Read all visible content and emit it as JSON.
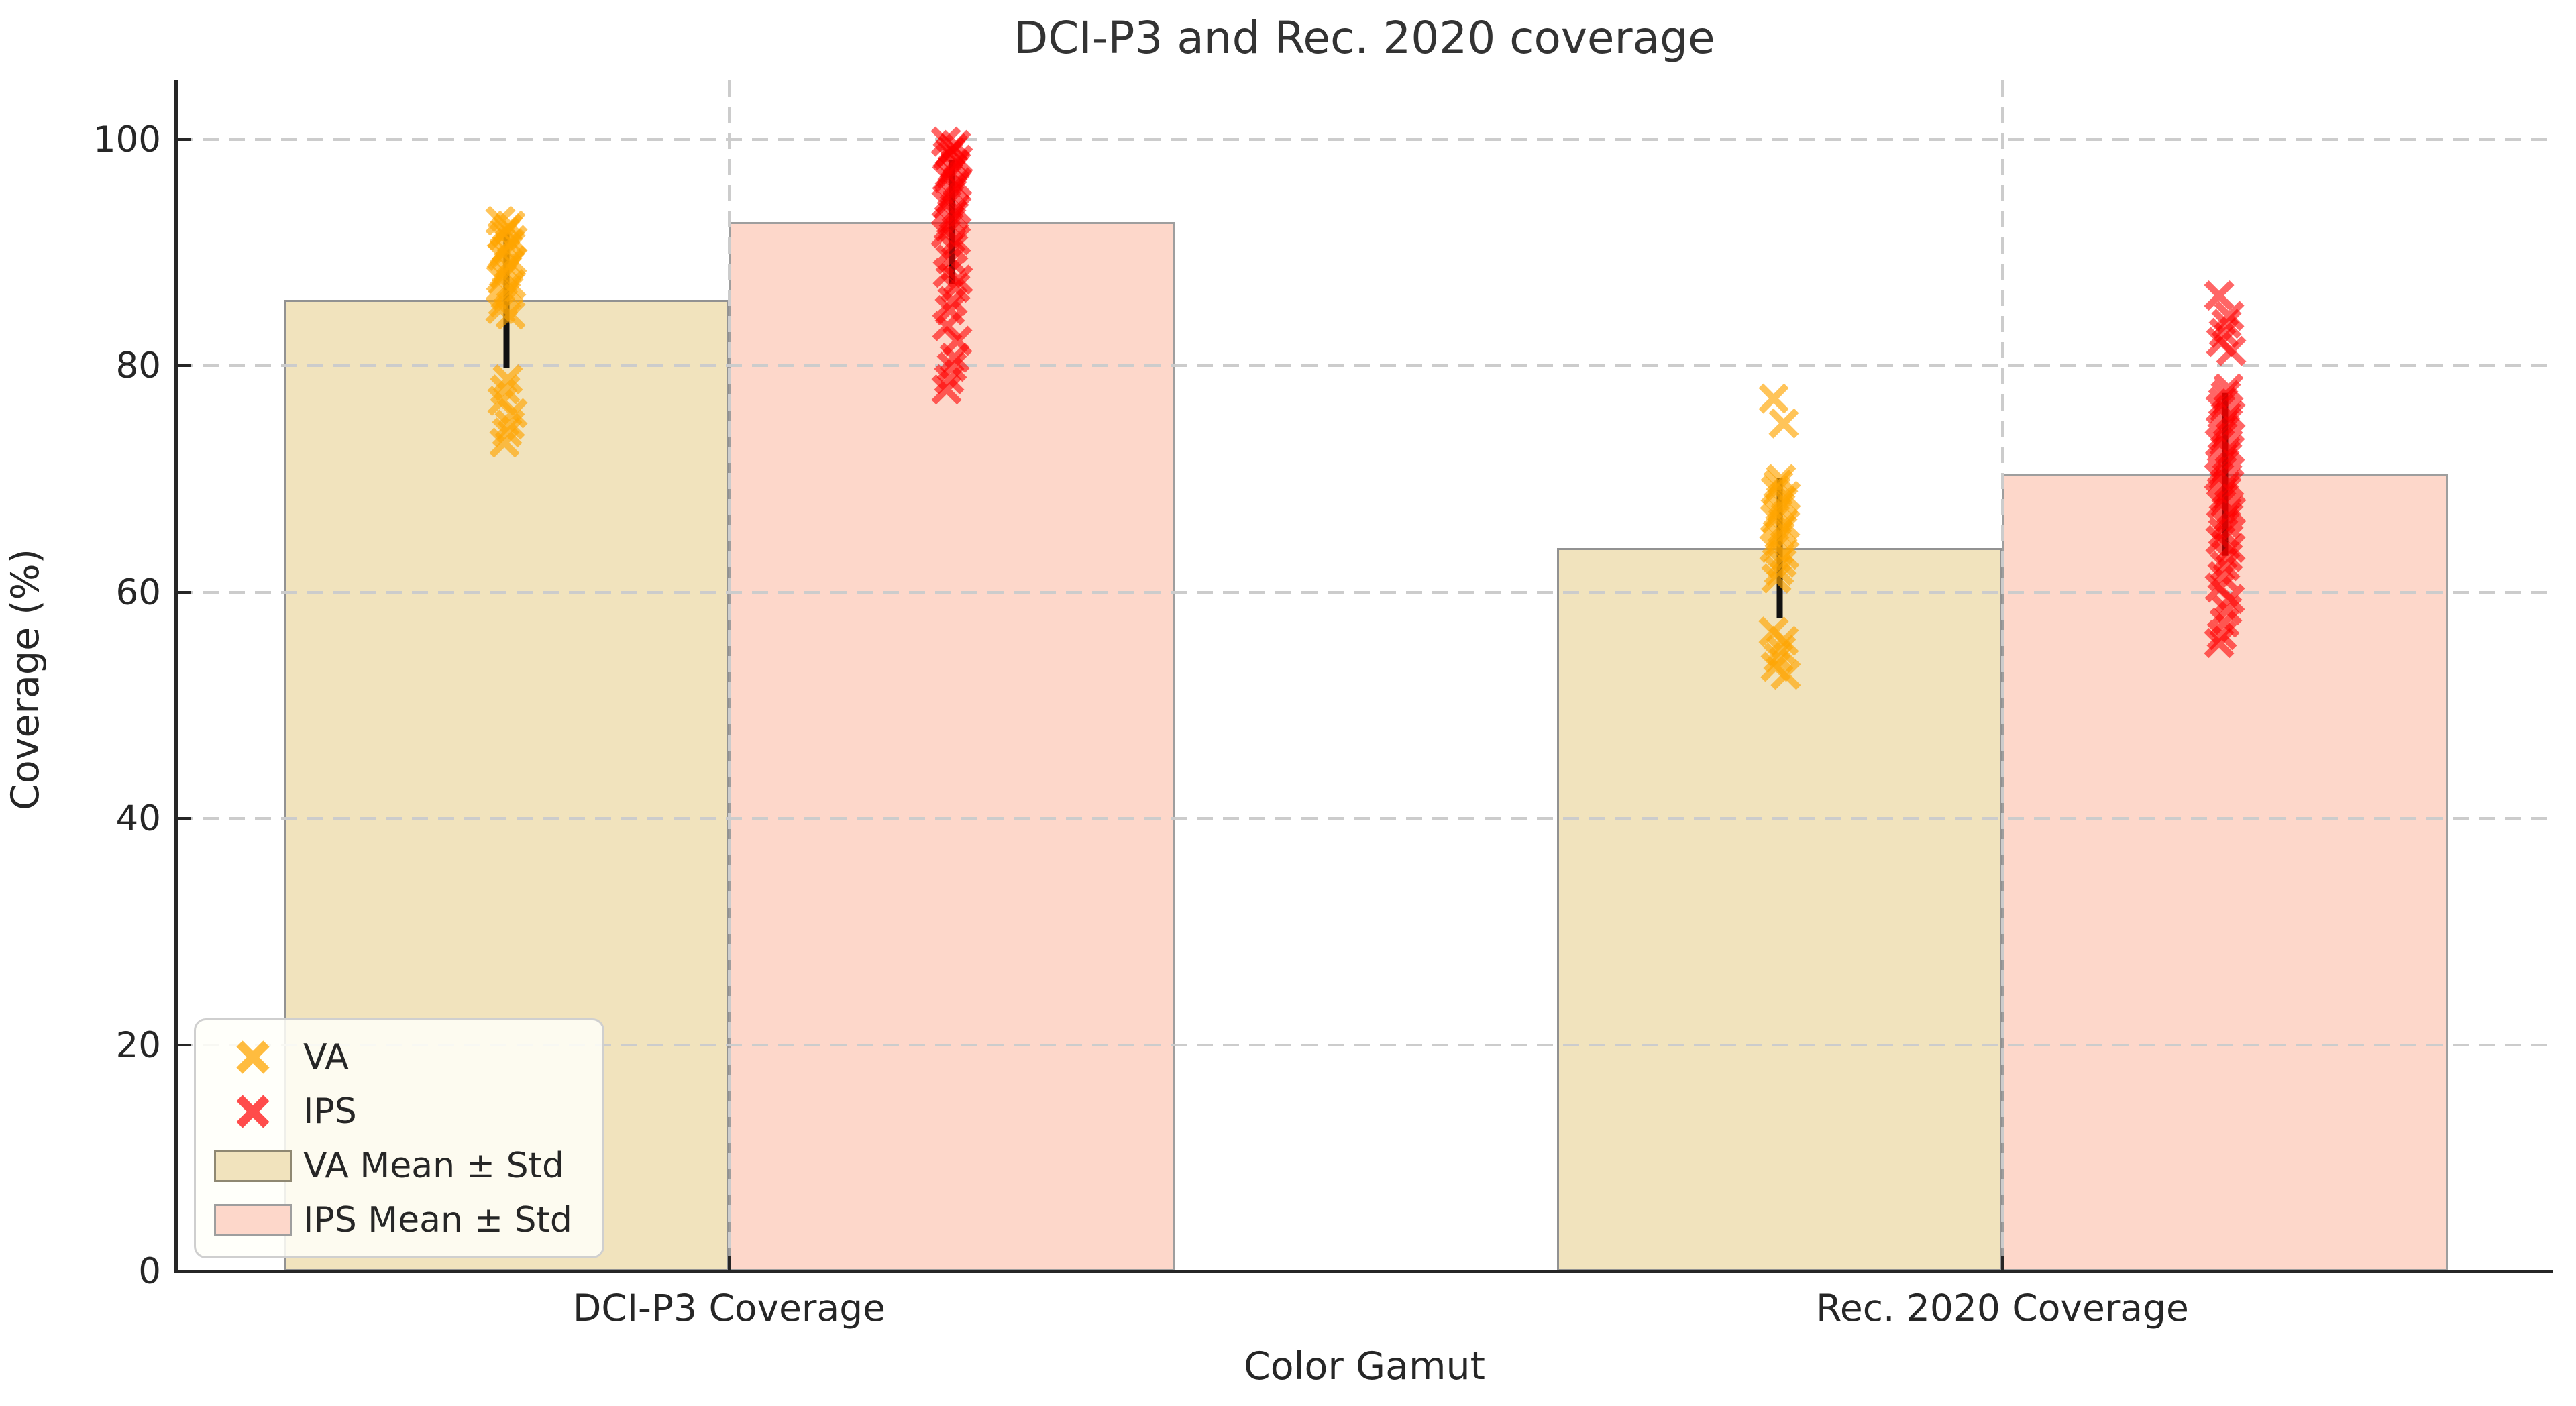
{
  "figure": {
    "background": "#ffffff"
  },
  "chart_data": {
    "type": "bar",
    "subtype": "grouped mean bars with std error bars and strip-plot x-marker overlay",
    "title": "DCI-P3 and Rec. 2020 coverage",
    "xlabel": "Color Gamut",
    "ylabel": "Coverage (%)",
    "categories": [
      "DCI-P3 Coverage",
      "Rec. 2020 Coverage"
    ],
    "yticks": [
      0,
      20,
      40,
      60,
      80,
      100
    ],
    "ylim": [
      0,
      105.2
    ],
    "grid": {
      "horizontal": true,
      "vertical": true,
      "style": "dashed",
      "color": "#cccccc"
    },
    "error_bar_color": "#111111",
    "legend_position": "lower left",
    "series": [
      {
        "name": "VA",
        "marker": "x",
        "marker_color": "#FFA500",
        "marker_opacity": 0.65,
        "bar_label": "VA Mean ± Std",
        "bar_fill": "#F1E3BD",
        "bar_edge": "#929292",
        "mean": [
          85.8,
          63.9
        ],
        "std": [
          6.0,
          6.2
        ],
        "points": [
          [
            92.8,
            92.4,
            92.1,
            91.8,
            91.5,
            91.1,
            90.8,
            90.4,
            90.1,
            89.7,
            89.3,
            88.9,
            88.5,
            88.1,
            87.7,
            87.2,
            86.7,
            86.2,
            85.6,
            85.0,
            84.5,
            78.8,
            77.9,
            76.9,
            75.8,
            74.8,
            74.1,
            73.2
          ],
          [
            77.1,
            74.9,
            70.0,
            69.5,
            69.0,
            68.5,
            68.0,
            67.5,
            67.0,
            66.5,
            66.0,
            65.5,
            65.0,
            64.5,
            63.9,
            63.3,
            62.6,
            61.9,
            61.2,
            56.5,
            55.7,
            54.9,
            54.2,
            53.4,
            52.7
          ]
        ]
      },
      {
        "name": "IPS",
        "marker": "x",
        "marker_color": "#FF0000",
        "marker_opacity": 0.6,
        "bar_label": "IPS Mean ± Std",
        "bar_fill": "#FDD7CA",
        "bar_edge": "#9E9E9E",
        "mean": [
          92.7,
          70.4
        ],
        "std": [
          5.5,
          7.2
        ],
        "points": [
          [
            99.8,
            99.5,
            99.2,
            98.9,
            98.6,
            98.2,
            97.8,
            97.4,
            97.0,
            96.6,
            96.2,
            95.8,
            95.3,
            94.8,
            94.3,
            93.8,
            93.3,
            92.8,
            92.3,
            91.7,
            91.1,
            90.4,
            89.4,
            88.2,
            87.6,
            86.9,
            85.7,
            84.9,
            83.5,
            82.2,
            80.7,
            79.9,
            78.8,
            77.9
          ],
          [
            86.2,
            84.4,
            83.7,
            82.9,
            82.1,
            81.3,
            78.0,
            77.4,
            76.8,
            76.2,
            75.6,
            75.0,
            74.4,
            73.8,
            73.2,
            72.6,
            72.0,
            71.4,
            70.8,
            70.2,
            69.6,
            69.0,
            68.4,
            67.8,
            67.2,
            66.6,
            66.0,
            65.3,
            64.6,
            63.9,
            63.1,
            62.3,
            61.4,
            60.4,
            59.4,
            58.4,
            57.3,
            56.2,
            55.5
          ]
        ]
      }
    ]
  }
}
